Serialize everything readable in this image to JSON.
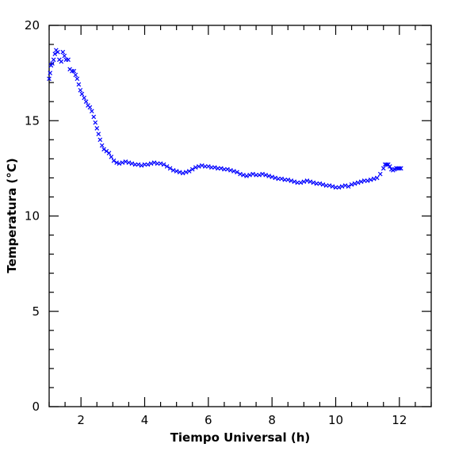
{
  "chart_data": {
    "type": "scatter",
    "xlabel": "Tiempo Universal (h)",
    "ylabel": "Temperatura (°C)",
    "xlim": [
      1,
      13
    ],
    "ylim": [
      0,
      20
    ],
    "x_ticks": [
      2,
      4,
      6,
      8,
      10,
      12
    ],
    "y_ticks": [
      0,
      5,
      10,
      15,
      20
    ],
    "marker": "x",
    "color": "#0000ff",
    "grid": false,
    "series": [
      {
        "points": [
          [
            1.0,
            17.2
          ],
          [
            1.03,
            17.5
          ],
          [
            1.06,
            17.9
          ],
          [
            1.1,
            18.0
          ],
          [
            1.14,
            18.2
          ],
          [
            1.18,
            18.5
          ],
          [
            1.22,
            18.7
          ],
          [
            1.27,
            18.6
          ],
          [
            1.32,
            18.2
          ],
          [
            1.38,
            18.1
          ],
          [
            1.43,
            18.6
          ],
          [
            1.48,
            18.4
          ],
          [
            1.53,
            18.2
          ],
          [
            1.6,
            18.2
          ],
          [
            1.65,
            17.7
          ],
          [
            1.72,
            17.6
          ],
          [
            1.78,
            17.6
          ],
          [
            1.83,
            17.4
          ],
          [
            1.88,
            17.2
          ],
          [
            1.93,
            16.9
          ],
          [
            1.98,
            16.6
          ],
          [
            2.03,
            16.4
          ],
          [
            2.1,
            16.2
          ],
          [
            2.16,
            16.0
          ],
          [
            2.22,
            15.8
          ],
          [
            2.28,
            15.7
          ],
          [
            2.34,
            15.5
          ],
          [
            2.4,
            15.2
          ],
          [
            2.45,
            14.9
          ],
          [
            2.5,
            14.6
          ],
          [
            2.55,
            14.3
          ],
          [
            2.6,
            14.0
          ],
          [
            2.66,
            13.7
          ],
          [
            2.72,
            13.5
          ],
          [
            2.8,
            13.4
          ],
          [
            2.88,
            13.3
          ],
          [
            2.95,
            13.1
          ],
          [
            3.03,
            12.9
          ],
          [
            3.12,
            12.8
          ],
          [
            3.2,
            12.75
          ],
          [
            3.3,
            12.8
          ],
          [
            3.4,
            12.85
          ],
          [
            3.5,
            12.8
          ],
          [
            3.6,
            12.75
          ],
          [
            3.7,
            12.7
          ],
          [
            3.8,
            12.7
          ],
          [
            3.9,
            12.65
          ],
          [
            4.0,
            12.7
          ],
          [
            4.1,
            12.7
          ],
          [
            4.2,
            12.75
          ],
          [
            4.3,
            12.8
          ],
          [
            4.4,
            12.75
          ],
          [
            4.5,
            12.75
          ],
          [
            4.6,
            12.7
          ],
          [
            4.7,
            12.6
          ],
          [
            4.8,
            12.5
          ],
          [
            4.9,
            12.4
          ],
          [
            5.0,
            12.35
          ],
          [
            5.1,
            12.3
          ],
          [
            5.2,
            12.25
          ],
          [
            5.3,
            12.3
          ],
          [
            5.4,
            12.35
          ],
          [
            5.5,
            12.45
          ],
          [
            5.6,
            12.55
          ],
          [
            5.7,
            12.6
          ],
          [
            5.8,
            12.65
          ],
          [
            5.9,
            12.6
          ],
          [
            6.0,
            12.6
          ],
          [
            6.1,
            12.55
          ],
          [
            6.2,
            12.55
          ],
          [
            6.3,
            12.5
          ],
          [
            6.4,
            12.5
          ],
          [
            6.5,
            12.45
          ],
          [
            6.6,
            12.45
          ],
          [
            6.7,
            12.4
          ],
          [
            6.8,
            12.35
          ],
          [
            6.9,
            12.3
          ],
          [
            7.0,
            12.2
          ],
          [
            7.1,
            12.15
          ],
          [
            7.2,
            12.1
          ],
          [
            7.3,
            12.15
          ],
          [
            7.4,
            12.2
          ],
          [
            7.5,
            12.15
          ],
          [
            7.6,
            12.15
          ],
          [
            7.7,
            12.2
          ],
          [
            7.8,
            12.15
          ],
          [
            7.9,
            12.1
          ],
          [
            8.0,
            12.05
          ],
          [
            8.1,
            12.0
          ],
          [
            8.2,
            11.95
          ],
          [
            8.3,
            11.95
          ],
          [
            8.4,
            11.9
          ],
          [
            8.5,
            11.9
          ],
          [
            8.6,
            11.85
          ],
          [
            8.7,
            11.8
          ],
          [
            8.8,
            11.75
          ],
          [
            8.9,
            11.75
          ],
          [
            9.0,
            11.8
          ],
          [
            9.1,
            11.85
          ],
          [
            9.2,
            11.8
          ],
          [
            9.3,
            11.75
          ],
          [
            9.4,
            11.7
          ],
          [
            9.5,
            11.7
          ],
          [
            9.6,
            11.65
          ],
          [
            9.7,
            11.6
          ],
          [
            9.8,
            11.6
          ],
          [
            9.9,
            11.55
          ],
          [
            10.0,
            11.5
          ],
          [
            10.1,
            11.5
          ],
          [
            10.2,
            11.55
          ],
          [
            10.3,
            11.6
          ],
          [
            10.4,
            11.55
          ],
          [
            10.5,
            11.65
          ],
          [
            10.6,
            11.7
          ],
          [
            10.7,
            11.75
          ],
          [
            10.8,
            11.8
          ],
          [
            10.9,
            11.85
          ],
          [
            11.0,
            11.85
          ],
          [
            11.1,
            11.9
          ],
          [
            11.2,
            11.95
          ],
          [
            11.3,
            12.0
          ],
          [
            11.4,
            12.2
          ],
          [
            11.5,
            12.5
          ],
          [
            11.55,
            12.7
          ],
          [
            11.6,
            12.7
          ],
          [
            11.65,
            12.7
          ],
          [
            11.7,
            12.6
          ],
          [
            11.75,
            12.45
          ],
          [
            11.8,
            12.4
          ],
          [
            11.85,
            12.45
          ],
          [
            11.9,
            12.5
          ],
          [
            11.95,
            12.5
          ],
          [
            12.0,
            12.5
          ],
          [
            12.05,
            12.5
          ]
        ]
      }
    ]
  }
}
